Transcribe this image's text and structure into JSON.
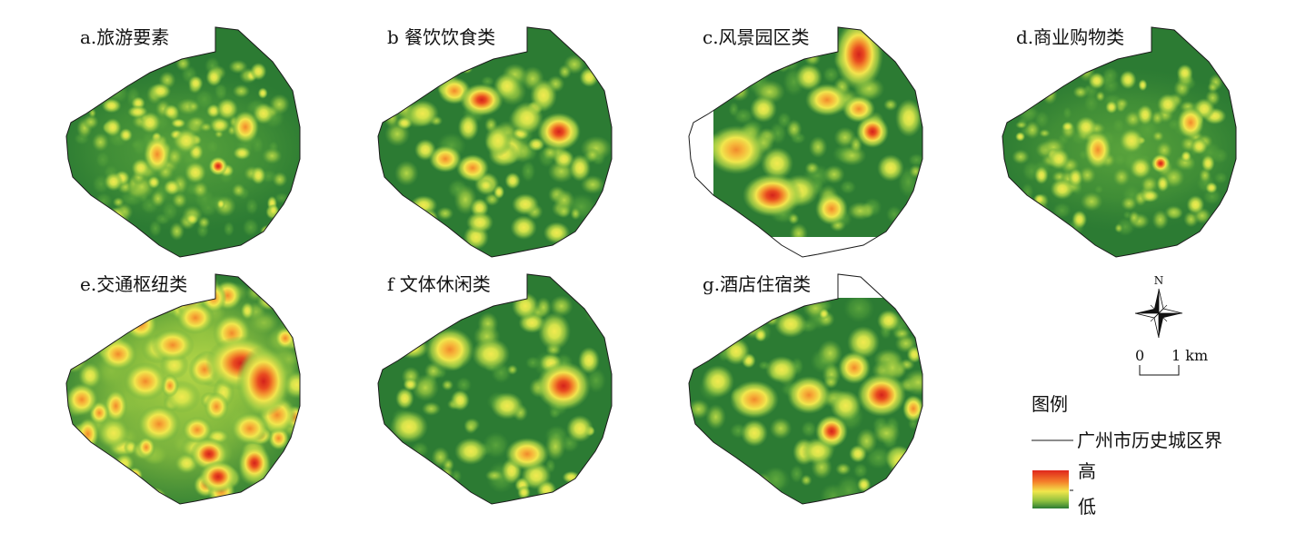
{
  "panels": [
    {
      "label": "a.旅游要素"
    },
    {
      "label": "b 餐饮饮食类"
    },
    {
      "label": "c.风景园区类"
    },
    {
      "label": "d.商业购物类"
    },
    {
      "label": "e.交通枢纽类"
    },
    {
      "label": "f 文体休闲类"
    },
    {
      "label": "g.酒店住宿类"
    }
  ],
  "north_arrow": {
    "label": "N"
  },
  "scale_bar": {
    "start": "0",
    "end": "1 km"
  },
  "legend": {
    "title": "图例",
    "boundary_label": "广州市历史城区界",
    "high_label": "高",
    "low_label": "低"
  },
  "colors": {
    "map_base": "#2c7b33",
    "boundary_line": "#1a1a1a",
    "legend_ramp": [
      "#e0261c",
      "#f4802a",
      "#f2e64c",
      "#8fc13f",
      "#2b7c34"
    ]
  }
}
